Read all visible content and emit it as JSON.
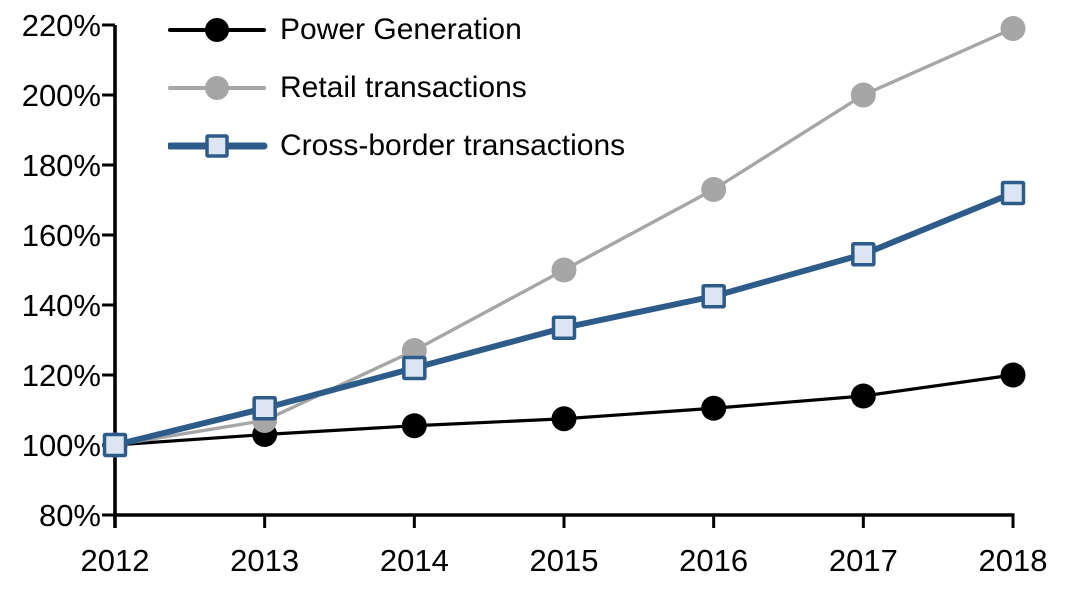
{
  "chart_data": {
    "type": "line",
    "title": "",
    "xlabel": "",
    "ylabel": "",
    "x": [
      "2012",
      "2013",
      "2014",
      "2015",
      "2016",
      "2017",
      "2018"
    ],
    "y_axis": {
      "min": 80,
      "max": 220,
      "tick_step": 20,
      "ticks": [
        220,
        200,
        180,
        160,
        140,
        120,
        100,
        80
      ],
      "tick_labels": [
        "220%",
        "200%",
        "180%",
        "160%",
        "140%",
        "120%",
        "100%",
        "80%"
      ]
    },
    "grid": false,
    "legend_position": "top-left",
    "axis_color": "#000000",
    "background_color": "#ffffff",
    "series": [
      {
        "name": "Power Generation",
        "line_color": "#000000",
        "marker": "circle",
        "marker_fill": "#000000",
        "values": [
          100,
          103,
          105.5,
          107.5,
          110.5,
          114,
          120
        ]
      },
      {
        "name": "Retail transactions",
        "line_color": "#a6a6a6",
        "marker": "circle",
        "marker_fill": "#a6a6a6",
        "values": [
          100,
          107,
          127,
          150,
          173,
          200,
          219
        ]
      },
      {
        "name": "Cross-border transactions",
        "line_color": "#2e5c8a",
        "marker": "square",
        "marker_fill": "#dce6f2",
        "values": [
          100,
          110.5,
          122,
          133.5,
          142.5,
          154.5,
          172
        ]
      }
    ]
  }
}
